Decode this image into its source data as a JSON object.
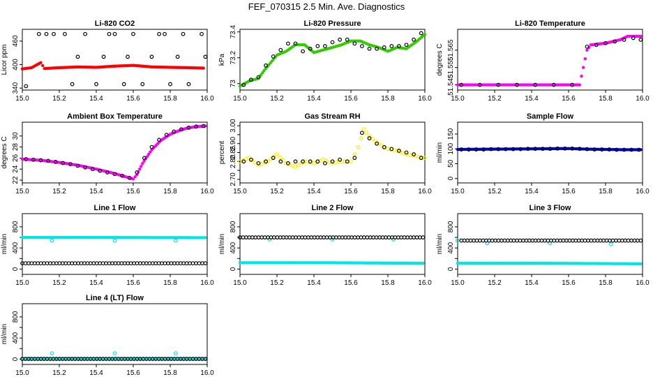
{
  "title": "FEF_070315  2.5 Min. Ave. Diagnostics",
  "chart_data": [
    {
      "type": "scatter",
      "title": "Li-820 CO2",
      "ylabel": "Licor ppm",
      "xlim": [
        15.0,
        16.0
      ],
      "ylim": [
        335,
        490
      ],
      "xticks": [
        15.0,
        15.2,
        15.4,
        15.6,
        15.8,
        16.0
      ],
      "yticks": [
        340,
        400,
        460
      ],
      "series": [
        {
          "color": "#ff0000",
          "marker": "dot",
          "style": "dense",
          "x": [
            15.0,
            15.05,
            15.1,
            15.12,
            15.2,
            15.3,
            15.4,
            15.5,
            15.6,
            15.7,
            15.8,
            15.9,
            15.98
          ],
          "y": [
            389,
            392,
            405,
            390,
            392,
            394,
            393,
            396,
            398,
            394,
            393,
            392,
            391
          ]
        },
        {
          "color": "#000000",
          "marker": "circle",
          "x": [
            15.02,
            15.09,
            15.13,
            15.17,
            15.23,
            15.27,
            15.3,
            15.34,
            15.4,
            15.44,
            15.47,
            15.5,
            15.55,
            15.57,
            15.6,
            15.65,
            15.7,
            15.74,
            15.77,
            15.8,
            15.84,
            15.87,
            15.9,
            15.97,
            15.99
          ],
          "y": [
            345,
            478,
            478,
            478,
            478,
            350,
            420,
            478,
            350,
            420,
            478,
            478,
            350,
            420,
            478,
            350,
            420,
            478,
            478,
            350,
            420,
            478,
            350,
            478,
            420
          ]
        }
      ]
    },
    {
      "type": "scatter",
      "title": "Li-820 Pressure",
      "ylabel": "kPa",
      "xlim": [
        15.0,
        16.0
      ],
      "ylim": [
        72.95,
        73.42
      ],
      "xticks": [
        15.0,
        15.2,
        15.4,
        15.6,
        15.8,
        16.0
      ],
      "yticks": [
        73.0,
        73.2,
        73.4
      ],
      "series": [
        {
          "color": "#33cc00",
          "marker": "dot",
          "style": "dense",
          "x": [
            15.0,
            15.05,
            15.1,
            15.13,
            15.2,
            15.25,
            15.3,
            15.35,
            15.4,
            15.45,
            15.5,
            15.55,
            15.6,
            15.65,
            15.7,
            15.75,
            15.8,
            15.85,
            15.9,
            15.95,
            16.0
          ],
          "y": [
            72.98,
            73.02,
            73.04,
            73.1,
            73.22,
            73.25,
            73.3,
            73.3,
            73.24,
            73.26,
            73.28,
            73.3,
            73.33,
            73.33,
            73.3,
            73.28,
            73.25,
            73.28,
            73.27,
            73.32,
            73.38
          ]
        },
        {
          "color": "#000000",
          "marker": "circle",
          "x": [
            15.02,
            15.06,
            15.1,
            15.14,
            15.18,
            15.22,
            15.26,
            15.3,
            15.34,
            15.38,
            15.42,
            15.46,
            15.5,
            15.54,
            15.58,
            15.62,
            15.66,
            15.7,
            15.74,
            15.78,
            15.82,
            15.86,
            15.9,
            15.94,
            15.98
          ],
          "y": [
            72.99,
            73.03,
            73.05,
            73.14,
            73.21,
            73.26,
            73.31,
            73.31,
            73.25,
            73.27,
            73.29,
            73.29,
            73.32,
            73.34,
            73.34,
            73.31,
            73.29,
            73.27,
            73.27,
            73.28,
            73.29,
            73.29,
            73.3,
            73.34,
            73.39
          ]
        }
      ]
    },
    {
      "type": "scatter",
      "title": "Li-820 Temperature",
      "ylabel": "degrees C",
      "xlim": [
        15.0,
        16.0
      ],
      "ylim": [
        51.542,
        51.577
      ],
      "xticks": [
        15.0,
        15.2,
        15.4,
        15.6,
        15.8,
        16.0
      ],
      "yticks": [
        51.545,
        51.555,
        51.565
      ],
      "series": [
        {
          "color": "#ff00ff",
          "marker": "dot",
          "style": "dense",
          "x": [
            15.0,
            15.2,
            15.4,
            15.6,
            15.66,
            15.68,
            15.7,
            15.72,
            15.8,
            15.88,
            15.92,
            15.96,
            15.99
          ],
          "y": [
            51.545,
            51.545,
            51.545,
            51.545,
            51.545,
            51.555,
            51.565,
            51.568,
            51.569,
            51.571,
            51.573,
            51.573,
            51.573
          ]
        },
        {
          "color": "#000000",
          "marker": "circle",
          "x": [
            15.02,
            15.12,
            15.22,
            15.32,
            15.42,
            15.52,
            15.62,
            15.7,
            15.75,
            15.8,
            15.85,
            15.9,
            15.95,
            15.99
          ],
          "y": [
            51.545,
            51.545,
            51.545,
            51.545,
            51.545,
            51.545,
            51.545,
            51.567,
            51.568,
            51.569,
            51.57,
            51.571,
            51.572,
            51.571
          ]
        }
      ]
    },
    {
      "type": "scatter",
      "title": "Ambient Box Temperature",
      "ylabel": "degrees C",
      "xlim": [
        15.0,
        16.0
      ],
      "ylim": [
        21.5,
        32.5
      ],
      "xticks": [
        15.0,
        15.2,
        15.4,
        15.6,
        15.8,
        16.0
      ],
      "yticks": [
        22,
        24,
        26,
        28,
        30
      ],
      "series": [
        {
          "color": "#ff00ff",
          "marker": "dot",
          "style": "dense",
          "x": [
            15.0,
            15.1,
            15.2,
            15.3,
            15.4,
            15.5,
            15.6,
            15.62,
            15.65,
            15.7,
            15.75,
            15.8,
            15.85,
            15.9,
            15.95,
            15.99
          ],
          "y": [
            25.8,
            25.6,
            25.2,
            24.7,
            24.0,
            23.2,
            22.2,
            23.0,
            25.0,
            27.5,
            29.2,
            30.3,
            31.0,
            31.5,
            31.7,
            31.8
          ]
        },
        {
          "color": "#000000",
          "marker": "circle",
          "x": [
            15.02,
            15.06,
            15.1,
            15.14,
            15.18,
            15.22,
            15.26,
            15.3,
            15.34,
            15.38,
            15.42,
            15.46,
            15.5,
            15.54,
            15.58,
            15.62,
            15.66,
            15.7,
            15.74,
            15.78,
            15.82,
            15.86,
            15.9,
            15.94,
            15.98
          ],
          "y": [
            25.8,
            25.7,
            25.6,
            25.5,
            25.3,
            25.1,
            24.9,
            24.6,
            24.3,
            24.0,
            23.7,
            23.4,
            23.1,
            22.8,
            22.4,
            23.4,
            26.0,
            28.0,
            29.3,
            30.2,
            30.8,
            31.2,
            31.5,
            31.7,
            31.8
          ]
        }
      ]
    },
    {
      "type": "scatter",
      "title": "Gas Stream RH",
      "ylabel": "percent",
      "xlim": [
        15.0,
        16.0
      ],
      "ylim": [
        2.68,
        3.02
      ],
      "xticks": [
        15.0,
        15.2,
        15.4,
        15.6,
        15.8,
        16.0
      ],
      "yticks": [
        2.7,
        2.75,
        2.8,
        2.85,
        2.9,
        2.95,
        3.0
      ],
      "ytick_labels": [
        "2.70",
        "",
        "2.80",
        "2.85",
        "2.90",
        "",
        "3.00"
      ],
      "series": [
        {
          "color": "#ffee00",
          "marker": "circle",
          "style": "dense",
          "x": [
            15.0,
            15.05,
            15.1,
            15.15,
            15.2,
            15.25,
            15.3,
            15.35,
            15.4,
            15.45,
            15.5,
            15.55,
            15.6,
            15.64,
            15.67,
            15.7,
            15.75,
            15.8,
            15.85,
            15.9,
            15.95,
            16.0
          ],
          "y": [
            2.8,
            2.82,
            2.78,
            2.8,
            2.84,
            2.79,
            2.77,
            2.8,
            2.79,
            2.81,
            2.79,
            2.8,
            2.8,
            2.88,
            2.98,
            2.94,
            2.9,
            2.87,
            2.86,
            2.84,
            2.83,
            2.82
          ]
        },
        {
          "color": "#000000",
          "marker": "circle",
          "x": [
            15.02,
            15.06,
            15.1,
            15.14,
            15.18,
            15.22,
            15.26,
            15.3,
            15.34,
            15.38,
            15.42,
            15.46,
            15.5,
            15.54,
            15.58,
            15.62,
            15.66,
            15.7,
            15.74,
            15.78,
            15.82,
            15.86,
            15.9,
            15.94,
            15.98
          ],
          "y": [
            2.8,
            2.81,
            2.79,
            2.8,
            2.82,
            2.8,
            2.79,
            2.8,
            2.8,
            2.8,
            2.8,
            2.79,
            2.8,
            2.81,
            2.8,
            2.82,
            2.96,
            2.93,
            2.9,
            2.88,
            2.87,
            2.86,
            2.85,
            2.84,
            2.82
          ]
        }
      ]
    },
    {
      "type": "scatter",
      "title": "Sample Flow",
      "ylabel": "ml/min",
      "xlim": [
        15.0,
        16.0
      ],
      "ylim": [
        -15,
        190
      ],
      "xticks": [
        15.0,
        15.2,
        15.4,
        15.6,
        15.8,
        16.0
      ],
      "yticks": [
        0,
        50,
        100,
        150
      ],
      "series": [
        {
          "color": "#0000cc",
          "marker": "dot",
          "style": "dense",
          "x": [
            15.0,
            15.2,
            15.4,
            15.6,
            15.7,
            15.8,
            15.9,
            15.99
          ],
          "y": [
            98,
            99,
            100,
            101,
            99,
            98,
            97,
            97
          ]
        },
        {
          "color": "#000000",
          "marker": "circle",
          "x": [
            15.02,
            15.06,
            15.1,
            15.14,
            15.18,
            15.22,
            15.26,
            15.3,
            15.34,
            15.38,
            15.42,
            15.46,
            15.5,
            15.54,
            15.58,
            15.62,
            15.66,
            15.7,
            15.74,
            15.78,
            15.82,
            15.86,
            15.9,
            15.94,
            15.98
          ],
          "y": [
            98,
            98,
            98,
            98,
            99,
            99,
            99,
            99,
            99,
            100,
            100,
            100,
            100,
            101,
            101,
            101,
            100,
            99,
            98,
            98,
            98,
            97,
            97,
            97,
            97
          ]
        }
      ]
    },
    {
      "type": "scatter",
      "title": "Line 1 Flow",
      "ylabel": "ml/min",
      "xlim": [
        15.0,
        16.0
      ],
      "ylim": [
        -100,
        1050
      ],
      "xticks": [
        15.0,
        15.2,
        15.4,
        15.6,
        15.8,
        16.0
      ],
      "yticks": [
        0,
        400,
        800
      ],
      "extra_yticks": [
        200,
        600
      ],
      "series": [
        {
          "color": "#00e5e5",
          "marker": "dot",
          "style": "dense",
          "x": [
            15.0,
            15.2,
            15.4,
            15.6,
            15.8,
            15.99
          ],
          "y": [
            600,
            600,
            600,
            598,
            596,
            595
          ]
        },
        {
          "color": "#00e5e5",
          "marker": "circle",
          "x": [
            15.16,
            15.5,
            15.83
          ],
          "y": [
            540,
            540,
            540
          ]
        },
        {
          "color": "#000000",
          "marker": "circle",
          "style": "dense",
          "x": [
            15.0,
            15.99
          ],
          "y": [
            110,
            110
          ]
        }
      ]
    },
    {
      "type": "scatter",
      "title": "Line 2 Flow",
      "ylabel": "ml/min",
      "xlim": [
        15.0,
        16.0
      ],
      "ylim": [
        -100,
        1050
      ],
      "xticks": [
        15.0,
        15.2,
        15.4,
        15.6,
        15.8,
        16.0
      ],
      "yticks": [
        0,
        400,
        800
      ],
      "extra_yticks": [
        200,
        600
      ],
      "series": [
        {
          "color": "#00e5e5",
          "marker": "dot",
          "style": "dense",
          "x": [
            15.0,
            15.5,
            15.99
          ],
          "y": [
            120,
            120,
            110
          ]
        },
        {
          "color": "#00e5e5",
          "marker": "circle",
          "x": [
            15.0,
            15.16,
            15.5,
            15.83
          ],
          "y": [
            600,
            560,
            560,
            560
          ]
        },
        {
          "color": "#000000",
          "marker": "circle",
          "style": "dense",
          "x": [
            15.0,
            15.99
          ],
          "y": [
            600,
            600
          ]
        }
      ]
    },
    {
      "type": "scatter",
      "title": "Line 3 Flow",
      "ylabel": "ml/min",
      "xlim": [
        15.0,
        16.0
      ],
      "ylim": [
        -100,
        1050
      ],
      "xticks": [
        15.0,
        15.2,
        15.4,
        15.6,
        15.8,
        16.0
      ],
      "yticks": [
        0,
        400,
        800
      ],
      "extra_yticks": [
        200,
        600
      ],
      "series": [
        {
          "color": "#00e5e5",
          "marker": "dot",
          "style": "dense",
          "x": [
            15.0,
            15.5,
            15.99
          ],
          "y": [
            110,
            110,
            100
          ]
        },
        {
          "color": "#00e5e5",
          "marker": "circle",
          "x": [
            15.0,
            15.16,
            15.5,
            15.83
          ],
          "y": [
            540,
            490,
            490,
            470
          ]
        },
        {
          "color": "#000000",
          "marker": "circle",
          "style": "dense",
          "x": [
            15.02,
            15.99
          ],
          "y": [
            540,
            540
          ]
        }
      ]
    },
    {
      "type": "scatter",
      "title": "Line 4 (LT) Flow",
      "ylabel": "ml/min",
      "xlim": [
        15.0,
        16.0
      ],
      "ylim": [
        -100,
        1050
      ],
      "xticks": [
        15.0,
        15.2,
        15.4,
        15.6,
        15.8,
        16.0
      ],
      "yticks": [
        0,
        400,
        800
      ],
      "extra_yticks": [
        200,
        600
      ],
      "series": [
        {
          "color": "#00e5e5",
          "marker": "dot",
          "style": "dense",
          "x": [
            15.0,
            15.99
          ],
          "y": [
            10,
            10
          ]
        },
        {
          "color": "#00e5e5",
          "marker": "circle",
          "x": [
            15.16,
            15.5,
            15.83
          ],
          "y": [
            110,
            110,
            110
          ]
        },
        {
          "color": "#000000",
          "marker": "circle",
          "style": "dense",
          "x": [
            15.0,
            15.99
          ],
          "y": [
            5,
            5
          ]
        }
      ]
    }
  ]
}
